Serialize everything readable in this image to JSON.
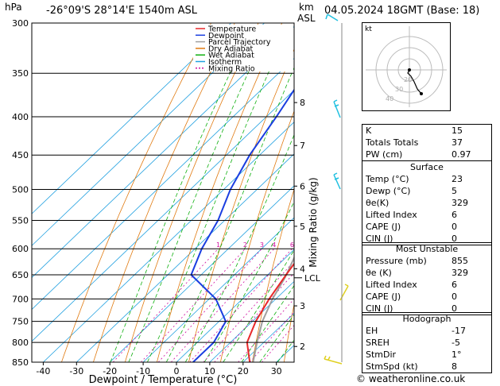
{
  "header": {
    "hpa_label": "hPa",
    "location": "-26°09'S  28°14'E  1540m  ASL",
    "km_label": "km",
    "asl_label": "ASL",
    "datetime": "04.05.2024  18GMT  (Base: 18)"
  },
  "chart_data": {
    "type": "skew-t",
    "xlabel": "Dewpoint / Temperature (°C)",
    "ylabel": "hPa",
    "right_axis_label": "Mixing Ratio (g/kg)",
    "pressure_ticks": [
      300,
      350,
      400,
      450,
      500,
      550,
      600,
      650,
      700,
      750,
      800,
      850
    ],
    "temp_ticks": [
      -40,
      -30,
      -20,
      -10,
      0,
      10,
      20,
      30
    ],
    "km_ticks": [
      {
        "km": "2",
        "p": 810
      },
      {
        "km": "3",
        "p": 715
      },
      {
        "km": "4",
        "p": 638
      },
      {
        "km": "5",
        "p": 560
      },
      {
        "km": "6",
        "p": 495
      },
      {
        "km": "7",
        "p": 437
      },
      {
        "km": "8",
        "p": 383
      }
    ],
    "lcl": {
      "label": "LCL",
      "p": 656
    },
    "mixing_ratios": [
      "1",
      "2",
      "3",
      "4",
      "6",
      "8",
      "10",
      "16",
      "20",
      "25"
    ],
    "legend": [
      "Temperature",
      "Dewpoint",
      "Parcel Trajectory",
      "Dry Adiabat",
      "Wet Adiabat",
      "Isotherm",
      "Mixing Ratio"
    ],
    "temperature": [
      {
        "p": 850,
        "t": 22
      },
      {
        "p": 800,
        "t": 15
      },
      {
        "p": 750,
        "t": 11
      },
      {
        "p": 700,
        "t": 8
      },
      {
        "p": 650,
        "t": 5.5
      },
      {
        "p": 600,
        "t": 3
      },
      {
        "p": 550,
        "t": -1
      },
      {
        "p": 500,
        "t": -6
      },
      {
        "p": 450,
        "t": -12
      },
      {
        "p": 400,
        "t": -18
      },
      {
        "p": 350,
        "t": -25
      },
      {
        "p": 300,
        "t": -34
      }
    ],
    "dewpoint": [
      {
        "p": 850,
        "t": 5
      },
      {
        "p": 800,
        "t": 5
      },
      {
        "p": 750,
        "t": 2
      },
      {
        "p": 700,
        "t": -8
      },
      {
        "p": 650,
        "t": -23
      },
      {
        "p": 600,
        "t": -28
      },
      {
        "p": 550,
        "t": -32
      },
      {
        "p": 500,
        "t": -38
      },
      {
        "p": 450,
        "t": -43
      },
      {
        "p": 400,
        "t": -47
      },
      {
        "p": 350,
        "t": -52
      },
      {
        "p": 300,
        "t": -55
      }
    ],
    "parcel": [
      {
        "p": 850,
        "t": 23
      },
      {
        "p": 800,
        "t": 18
      },
      {
        "p": 750,
        "t": 13
      },
      {
        "p": 700,
        "t": 9
      },
      {
        "p": 655,
        "t": 6
      },
      {
        "p": 600,
        "t": 1
      },
      {
        "p": 550,
        "t": -4
      },
      {
        "p": 500,
        "t": -10
      },
      {
        "p": 450,
        "t": -16
      },
      {
        "p": 400,
        "t": -23
      },
      {
        "p": 350,
        "t": -31
      },
      {
        "p": 300,
        "t": -41
      }
    ],
    "colors": {
      "temperature": "#e8282a",
      "dewpoint": "#1a3ee0",
      "parcel": "#a0a0a0",
      "dry_adiabat": "#e07a10",
      "wet_adiabat": "#10b010",
      "isotherm": "#20a0e0",
      "mixing_ratio": "#d010a0"
    }
  },
  "hodograph": {
    "unit": "kt",
    "ring_labels": [
      "20",
      "30",
      "40"
    ]
  },
  "indices": [
    {
      "label": "K",
      "value": "15"
    },
    {
      "label": "Totals Totals",
      "value": "37"
    },
    {
      "label": "PW (cm)",
      "value": "0.97"
    }
  ],
  "surface": {
    "title": "Surface",
    "rows": [
      {
        "label": "Temp (°C)",
        "value": "23"
      },
      {
        "label": "Dewp (°C)",
        "value": "5"
      },
      {
        "label": "θe(K)",
        "value": "329"
      },
      {
        "label": "Lifted Index",
        "value": "6"
      },
      {
        "label": "CAPE (J)",
        "value": "0"
      },
      {
        "label": "CIN (J)",
        "value": "0"
      }
    ]
  },
  "most_unstable": {
    "title": "Most Unstable",
    "rows": [
      {
        "label": "Pressure (mb)",
        "value": "855"
      },
      {
        "label": "θe (K)",
        "value": "329"
      },
      {
        "label": "Lifted Index",
        "value": "6"
      },
      {
        "label": "CAPE (J)",
        "value": "0"
      },
      {
        "label": "CIN (J)",
        "value": "0"
      }
    ]
  },
  "hodo_table": {
    "title": "Hodograph",
    "rows": [
      {
        "label": "EH",
        "value": "-17"
      },
      {
        "label": "SREH",
        "value": "-5"
      },
      {
        "label": "StmDir",
        "value": "1°"
      },
      {
        "label": "StmSpd (kt)",
        "value": "8"
      }
    ]
  },
  "footer": "© weatheronline.co.uk"
}
